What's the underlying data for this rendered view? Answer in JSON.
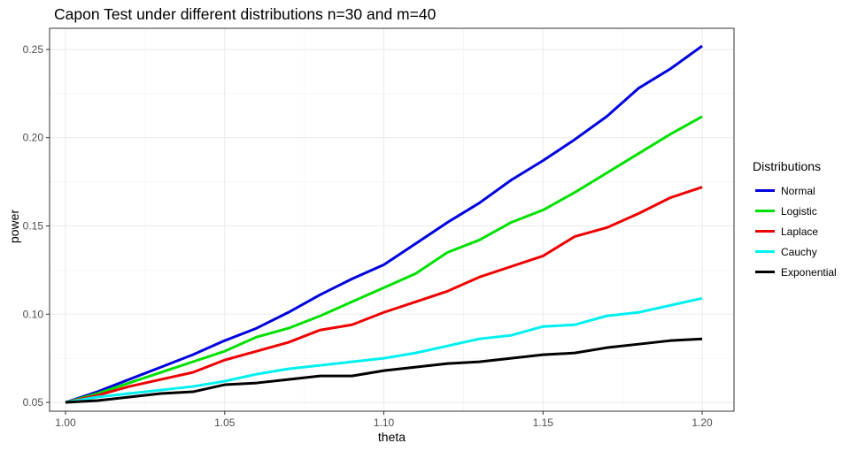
{
  "chart_data": {
    "type": "line",
    "title": "Capon Test under different distributions n=30 and m=40",
    "xlabel": "theta",
    "ylabel": "power",
    "xlim": [
      0.995,
      1.21
    ],
    "ylim": [
      0.045,
      0.262
    ],
    "x_ticks": [
      "1.00",
      "1.05",
      "1.10",
      "1.15",
      "1.20"
    ],
    "y_ticks": [
      "0.05",
      "0.10",
      "0.15",
      "0.20",
      "0.25"
    ],
    "grid": true,
    "legend_title": "Distributions",
    "legend_position": "right",
    "x": [
      1.0,
      1.01,
      1.02,
      1.03,
      1.04,
      1.05,
      1.06,
      1.07,
      1.08,
      1.09,
      1.1,
      1.11,
      1.12,
      1.13,
      1.14,
      1.15,
      1.16,
      1.17,
      1.18,
      1.19,
      1.2
    ],
    "series": [
      {
        "name": "Normal",
        "color": "#0000dd",
        "values": [
          0.05,
          0.056,
          0.063,
          0.07,
          0.077,
          0.085,
          0.092,
          0.101,
          0.111,
          0.12,
          0.128,
          0.14,
          0.152,
          0.163,
          0.176,
          0.187,
          0.199,
          0.212,
          0.228,
          0.239,
          0.252
        ]
      },
      {
        "name": "Logistic",
        "color": "#00e000",
        "values": [
          0.05,
          0.055,
          0.061,
          0.067,
          0.073,
          0.079,
          0.087,
          0.092,
          0.099,
          0.107,
          0.115,
          0.123,
          0.135,
          0.142,
          0.152,
          0.159,
          0.169,
          0.18,
          0.191,
          0.202,
          0.212
        ]
      },
      {
        "name": "Laplace",
        "color": "#ee0000",
        "values": [
          0.05,
          0.054,
          0.059,
          0.063,
          0.067,
          0.074,
          0.079,
          0.084,
          0.091,
          0.094,
          0.101,
          0.107,
          0.113,
          0.121,
          0.127,
          0.133,
          0.144,
          0.149,
          0.157,
          0.166,
          0.172
        ]
      },
      {
        "name": "Cauchy",
        "color": "#00f0f0",
        "values": [
          0.05,
          0.053,
          0.055,
          0.057,
          0.059,
          0.062,
          0.066,
          0.069,
          0.071,
          0.073,
          0.075,
          0.078,
          0.082,
          0.086,
          0.088,
          0.093,
          0.094,
          0.099,
          0.101,
          0.105,
          0.109
        ]
      },
      {
        "name": "Exponential",
        "color": "#000000",
        "values": [
          0.05,
          0.051,
          0.053,
          0.055,
          0.056,
          0.06,
          0.061,
          0.063,
          0.065,
          0.065,
          0.068,
          0.07,
          0.072,
          0.073,
          0.075,
          0.077,
          0.078,
          0.081,
          0.083,
          0.085,
          0.086
        ]
      }
    ]
  }
}
